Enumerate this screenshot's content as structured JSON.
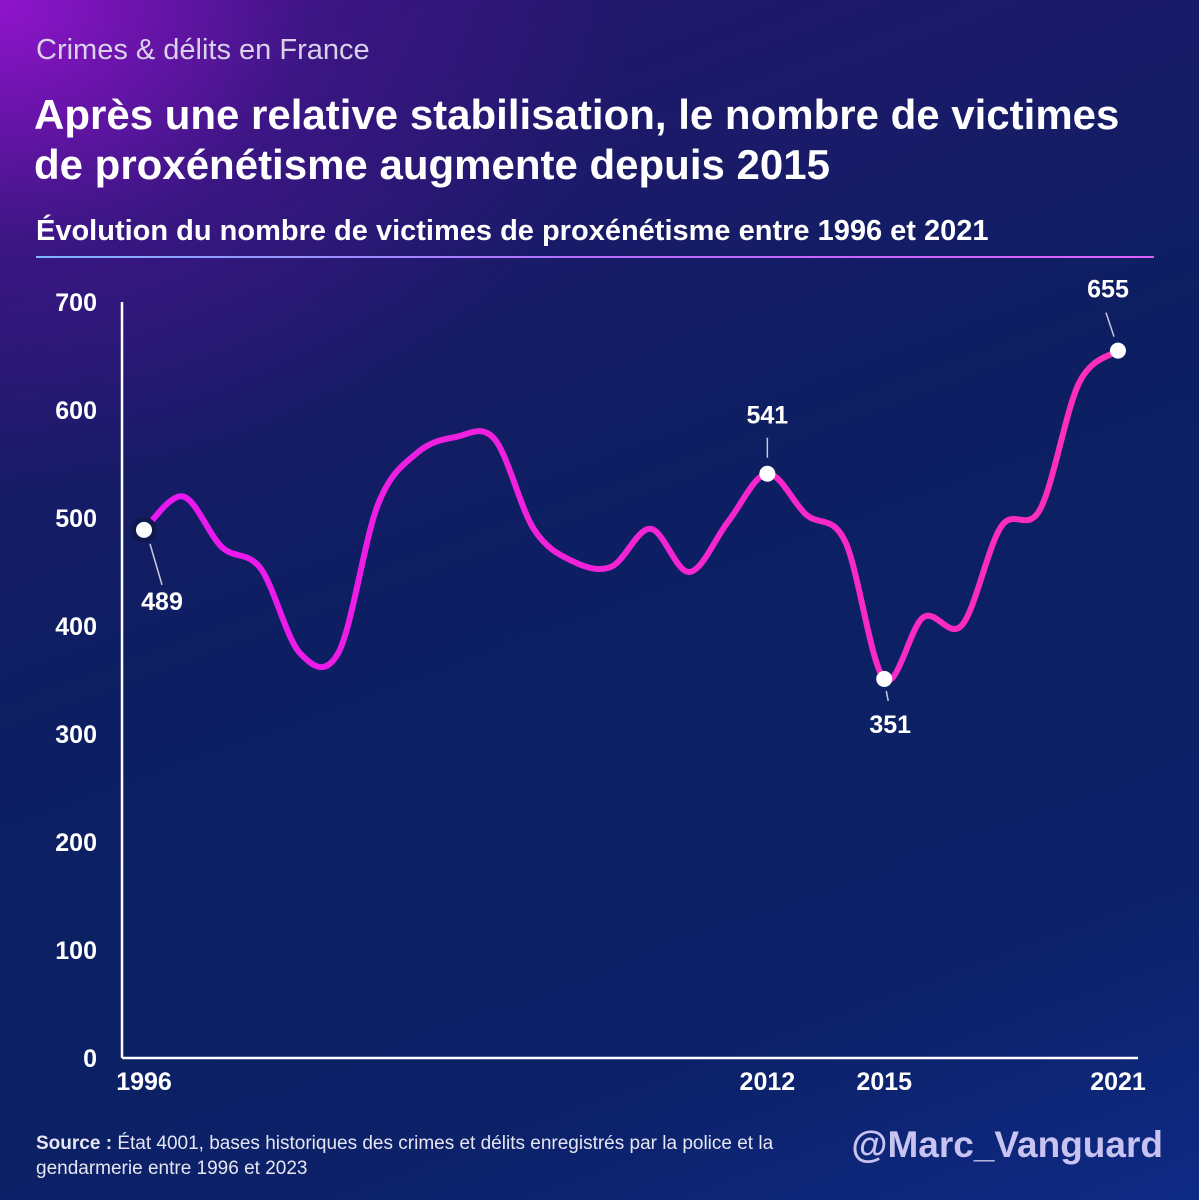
{
  "header": {
    "kicker": "Crimes & délits en France",
    "title": "Après une relative stabilisation, le nombre de victimes de proxénétisme augmente depuis 2015",
    "subtitle": "Évolution du nombre de victimes de proxénétisme entre 1996 et 2021"
  },
  "chart_data": {
    "type": "line",
    "title": "Évolution du nombre de victimes de proxénétisme entre 1996 et 2021",
    "xlabel": "",
    "ylabel": "",
    "ylim": [
      0,
      700
    ],
    "yticks": [
      0,
      100,
      200,
      300,
      400,
      500,
      600,
      700
    ],
    "xlim": [
      1996,
      2021
    ],
    "xtick_labels": [
      "1996",
      "2012",
      "2015",
      "2021"
    ],
    "grid": false,
    "series": [
      {
        "name": "Victimes de proxénétisme",
        "x": [
          1996,
          1997,
          1998,
          1999,
          2000,
          2001,
          2002,
          2003,
          2004,
          2005,
          2006,
          2007,
          2008,
          2009,
          2010,
          2011,
          2012,
          2013,
          2014,
          2015,
          2016,
          2017,
          2018,
          2019,
          2020,
          2021
        ],
        "values": [
          489,
          520,
          473,
          453,
          375,
          376,
          512,
          560,
          575,
          573,
          490,
          460,
          455,
          490,
          450,
          497,
          541,
          503,
          478,
          351,
          408,
          401,
          492,
          508,
          625,
          655
        ]
      }
    ],
    "annotations": [
      {
        "x": 1996,
        "label": "489"
      },
      {
        "x": 2012,
        "label": "541"
      },
      {
        "x": 2015,
        "label": "351"
      },
      {
        "x": 2021,
        "label": "655"
      }
    ],
    "colors": {
      "line_start": "#e818f2",
      "line_end": "#ff2fb8",
      "axis": "#ffffff"
    }
  },
  "footer": {
    "source_label": "Source :",
    "source_text": "État 4001, bases historiques des crimes et délits enregistrés par la police et la gendarmerie entre 1996 et 2023",
    "handle": "@Marc_Vanguard"
  }
}
